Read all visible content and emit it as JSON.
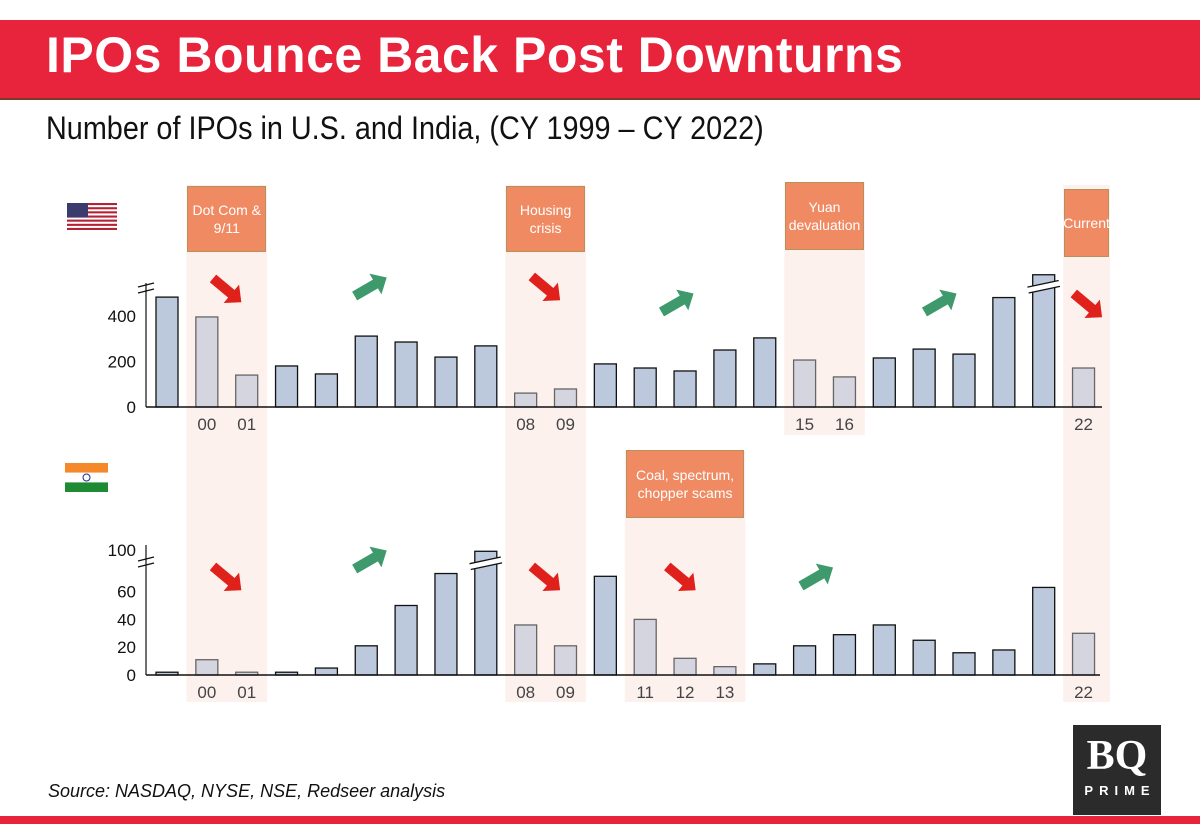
{
  "title": "IPOs Bounce Back Post Downturns",
  "subtitle": "Number of IPOs in U.S. and India, (CY 1999 – CY 2022)",
  "source": "Source: NASDAQ, NYSE, NSE, Redseer analysis",
  "logo": {
    "text": "BQ",
    "subtext": "PRIME"
  },
  "colors": {
    "brand_red": "#e8233c",
    "bar": "#bcc8dc",
    "bar_downturn": "#d5d5df",
    "band": "#fdf1ee",
    "annotation": "#f08a63",
    "arrow_up": "#3e9a6c",
    "arrow_down": "#e0201a"
  },
  "chart_data": [
    {
      "type": "bar",
      "country": "U.S.",
      "flag": "us-flag",
      "categories": [
        1999,
        2000,
        2001,
        2002,
        2003,
        2004,
        2005,
        2006,
        2007,
        2008,
        2009,
        2010,
        2011,
        2012,
        2013,
        2014,
        2015,
        2016,
        2017,
        2018,
        2019,
        2020,
        2021,
        2022
      ],
      "values": [
        482,
        395,
        140,
        180,
        145,
        311,
        285,
        219,
        268,
        61,
        79,
        189,
        171,
        158,
        250,
        303,
        206,
        132,
        215,
        254,
        232,
        480,
        1000,
        171
      ],
      "broken_bars": [
        2021
      ],
      "yticks": [
        0,
        200,
        400
      ],
      "ylim": [
        0,
        500
      ],
      "axis_break": true,
      "tick_labels_shown": {
        "2000": "00",
        "2001": "01",
        "2008": "08",
        "2009": "09",
        "2015": "15",
        "2016": "16",
        "2022": "22"
      },
      "downturns": [
        {
          "label": "Dot Com & 9/11",
          "years": [
            2000,
            2001
          ]
        },
        {
          "label": "Housing crisis",
          "years": [
            2008,
            2009
          ]
        },
        {
          "label": "Yuan devaluation",
          "years": [
            2015,
            2016
          ]
        },
        {
          "label": "Current",
          "years": [
            2022
          ]
        }
      ],
      "trend_arrows": [
        {
          "direction": "down",
          "near_year": 2000.5
        },
        {
          "direction": "up",
          "near_year": 2004.1
        },
        {
          "direction": "down",
          "near_year": 2008.5
        },
        {
          "direction": "up",
          "near_year": 2011.8
        },
        {
          "direction": "up",
          "near_year": 2018.4
        },
        {
          "direction": "down",
          "near_year": 2022.1
        }
      ]
    },
    {
      "type": "bar",
      "country": "India",
      "flag": "india-flag",
      "categories": [
        1999,
        2000,
        2001,
        2002,
        2003,
        2004,
        2005,
        2006,
        2007,
        2008,
        2009,
        2010,
        2011,
        2012,
        2013,
        2014,
        2015,
        2016,
        2017,
        2018,
        2019,
        2020,
        2021,
        2022
      ],
      "values": [
        2,
        11,
        2,
        2,
        5,
        21,
        50,
        73,
        100,
        36,
        21,
        71,
        40,
        12,
        6,
        8,
        21,
        29,
        36,
        25,
        16,
        18,
        63,
        30
      ],
      "broken_bars": [
        2007
      ],
      "yticks": [
        0,
        20,
        40,
        60,
        100
      ],
      "ylim": [
        0,
        100
      ],
      "axis_break": true,
      "tick_labels_shown": {
        "2000": "00",
        "2001": "01",
        "2008": "08",
        "2009": "09",
        "2011": "11",
        "2012": "12",
        "2013": "13",
        "2022": "22"
      },
      "downturns": [
        {
          "label": "",
          "years": [
            2000,
            2001
          ]
        },
        {
          "label": "",
          "years": [
            2008,
            2009
          ]
        },
        {
          "label": "Coal, spectrum, chopper scams",
          "years": [
            2011,
            2012,
            2013
          ]
        },
        {
          "label": "",
          "years": [
            2022
          ]
        }
      ],
      "trend_arrows": [
        {
          "direction": "down",
          "near_year": 2000.5
        },
        {
          "direction": "up",
          "near_year": 2004.1
        },
        {
          "direction": "down",
          "near_year": 2008.5
        },
        {
          "direction": "down",
          "near_year": 2011.9
        },
        {
          "direction": "up",
          "near_year": 2015.3
        }
      ]
    }
  ]
}
